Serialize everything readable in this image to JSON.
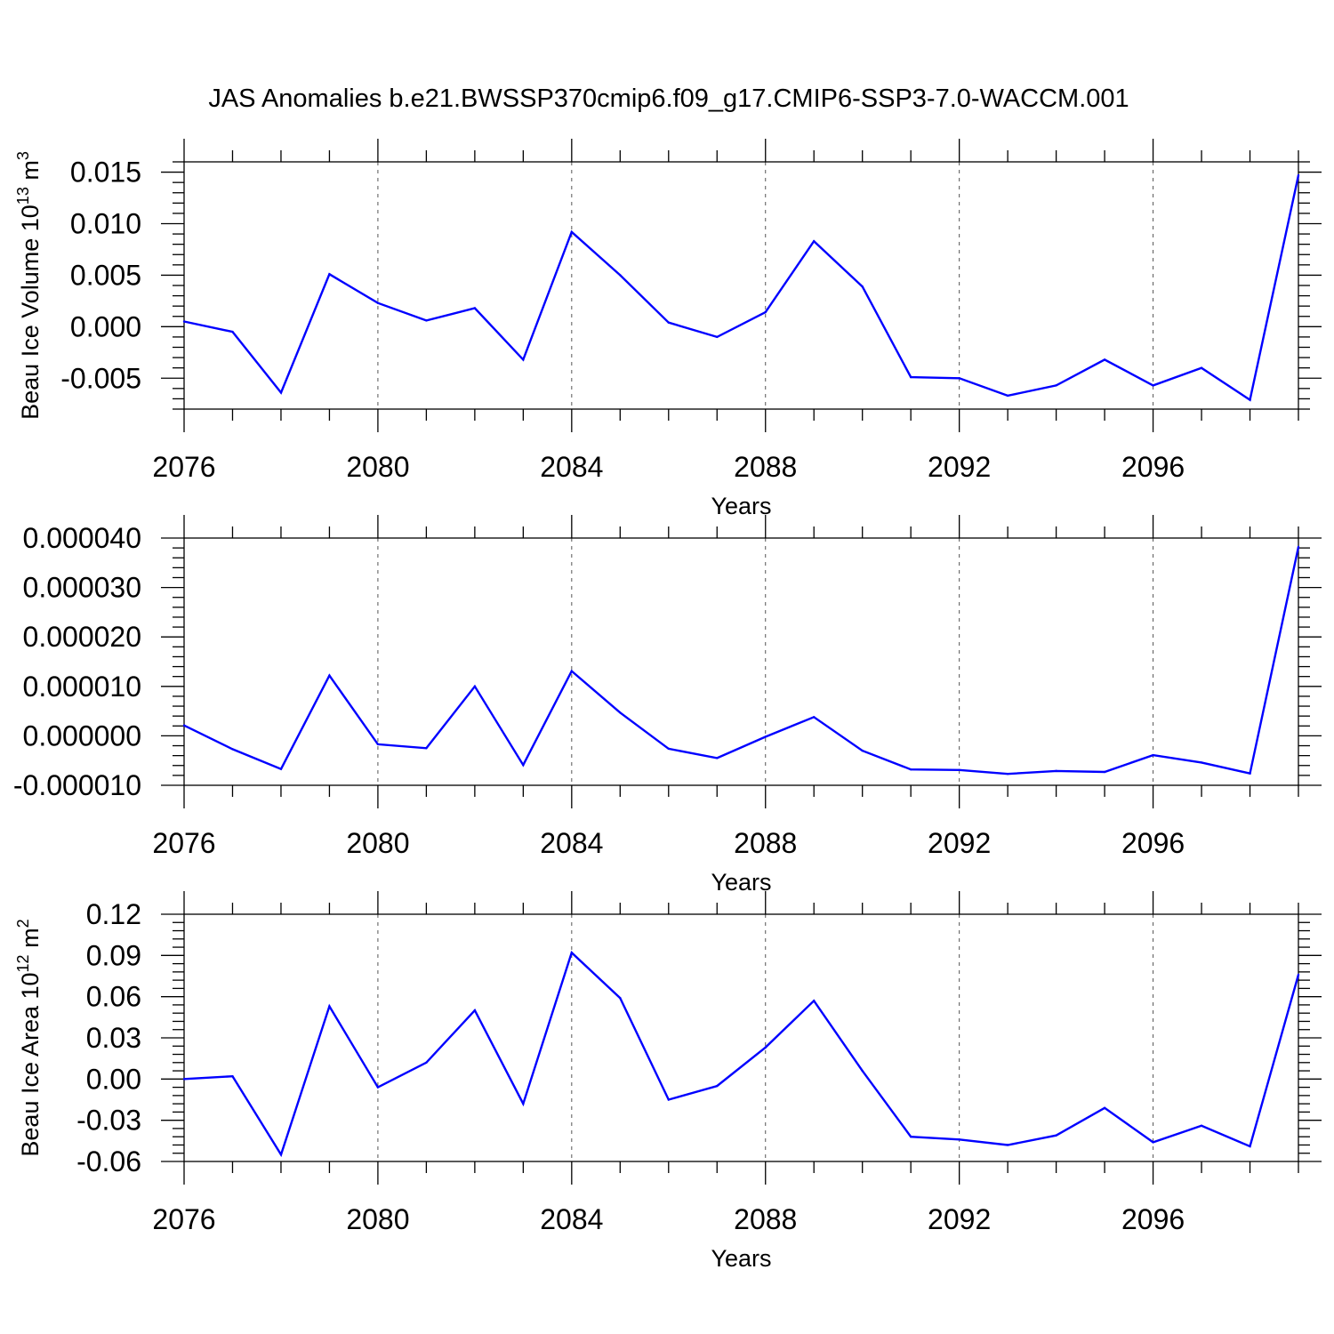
{
  "title": "JAS Anomalies b.e21.BWSSP370cmip6.f09_g17.CMIP6-SSP3-7.0-WACCM.001",
  "colors": {
    "line": "#0000ff",
    "axis": "#000000",
    "grid": "#555555"
  },
  "chart_data": [
    {
      "type": "line",
      "xlabel": "Years",
      "ylabel": "Beau Ice Volume 10",
      "ylabel_exp": "13",
      "ylabel_unit": " m",
      "ylabel_unit_exp": "3",
      "xlim": [
        2076,
        2099
      ],
      "ylim": [
        -0.008,
        0.016
      ],
      "x_ticks": [
        2076,
        2080,
        2084,
        2088,
        2092,
        2096
      ],
      "x_tick_labels": [
        "2076",
        "2080",
        "2084",
        "2088",
        "2092",
        "2096"
      ],
      "y_ticks": [
        -0.005,
        0.0,
        0.005,
        0.01,
        0.015
      ],
      "y_tick_labels": [
        "-0.005",
        "0.000",
        "0.005",
        "0.010",
        "0.015"
      ],
      "grid": "vertical dashed at major x ticks",
      "x": [
        2076,
        2077,
        2078,
        2079,
        2080,
        2081,
        2082,
        2083,
        2084,
        2085,
        2086,
        2087,
        2088,
        2089,
        2090,
        2091,
        2092,
        2093,
        2094,
        2095,
        2096,
        2097,
        2098,
        2099
      ],
      "series": [
        {
          "values": [
            0.0005,
            -0.0005,
            -0.0064,
            0.0051,
            0.0023,
            0.0006,
            0.0018,
            -0.0032,
            0.0092,
            0.005,
            0.0004,
            -0.001,
            0.0014,
            0.0083,
            0.0039,
            -0.0049,
            -0.005,
            -0.0067,
            -0.0057,
            -0.0032,
            -0.0057,
            -0.004,
            -0.0071,
            0.0147
          ]
        }
      ]
    },
    {
      "type": "line",
      "xlabel": "Years",
      "ylabel": "",
      "xlim": [
        2076,
        2099
      ],
      "ylim": [
        -1e-05,
        4e-05
      ],
      "x_ticks": [
        2076,
        2080,
        2084,
        2088,
        2092,
        2096
      ],
      "x_tick_labels": [
        "2076",
        "2080",
        "2084",
        "2088",
        "2092",
        "2096"
      ],
      "y_ticks": [
        -1e-05,
        0.0,
        1e-05,
        2e-05,
        3e-05,
        4e-05
      ],
      "y_tick_labels": [
        "-0.000010",
        "0.000000",
        "0.000010",
        "0.000020",
        "0.000030",
        "0.000040"
      ],
      "grid": "vertical dashed at major x ticks",
      "x": [
        2076,
        2077,
        2078,
        2079,
        2080,
        2081,
        2082,
        2083,
        2084,
        2085,
        2086,
        2087,
        2088,
        2089,
        2090,
        2091,
        2092,
        2093,
        2094,
        2095,
        2096,
        2097,
        2098,
        2099
      ],
      "series": [
        {
          "values": [
            2.1e-06,
            -2.7e-06,
            -6.7e-06,
            1.22e-05,
            -1.7e-06,
            -2.5e-06,
            1e-05,
            -5.9e-06,
            1.31e-05,
            4.7e-06,
            -2.6e-06,
            -4.5e-06,
            -2e-07,
            3.8e-06,
            -3e-06,
            -6.8e-06,
            -6.9e-06,
            -7.7e-06,
            -7.1e-06,
            -7.3e-06,
            -3.9e-06,
            -5.4e-06,
            -7.6e-06,
            3.82e-05
          ]
        }
      ]
    },
    {
      "type": "line",
      "xlabel": "Years",
      "ylabel": "Beau Ice Area 10",
      "ylabel_exp": "12",
      "ylabel_unit": " m",
      "ylabel_unit_exp": "2",
      "xlim": [
        2076,
        2099
      ],
      "ylim": [
        -0.06,
        0.12
      ],
      "x_ticks": [
        2076,
        2080,
        2084,
        2088,
        2092,
        2096
      ],
      "x_tick_labels": [
        "2076",
        "2080",
        "2084",
        "2088",
        "2092",
        "2096"
      ],
      "y_ticks": [
        -0.06,
        -0.03,
        0.0,
        0.03,
        0.06,
        0.09,
        0.12
      ],
      "y_tick_labels": [
        "-0.06",
        "-0.03",
        "0.00",
        "0.03",
        "0.06",
        "0.09",
        "0.12"
      ],
      "grid": "vertical dashed at major x ticks",
      "x": [
        2076,
        2077,
        2078,
        2079,
        2080,
        2081,
        2082,
        2083,
        2084,
        2085,
        2086,
        2087,
        2088,
        2089,
        2090,
        2091,
        2092,
        2093,
        2094,
        2095,
        2096,
        2097,
        2098,
        2099
      ],
      "series": [
        {
          "values": [
            0.0,
            0.002,
            -0.055,
            0.053,
            -0.006,
            0.012,
            0.05,
            -0.018,
            0.092,
            0.059,
            -0.015,
            -0.005,
            0.023,
            0.057,
            0.006,
            -0.042,
            -0.044,
            -0.048,
            -0.041,
            -0.021,
            -0.046,
            -0.034,
            -0.049,
            0.076
          ]
        }
      ]
    }
  ]
}
